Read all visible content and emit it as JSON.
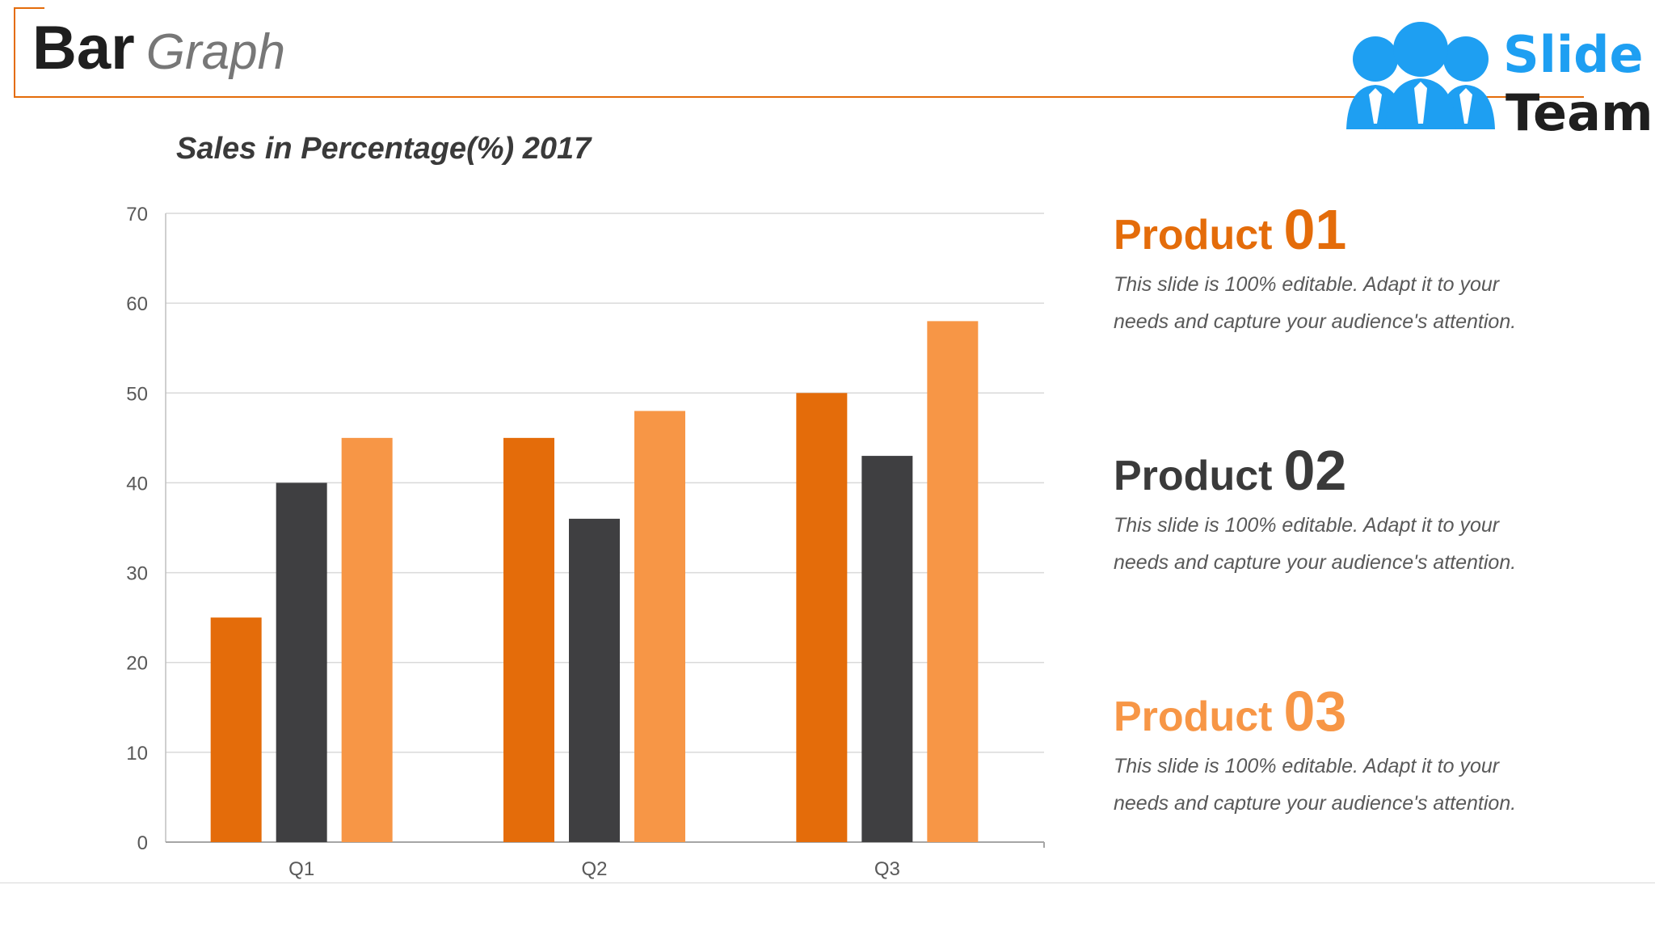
{
  "header": {
    "title_bold": "Bar",
    "title_italic": "Graph"
  },
  "logo": {
    "word1": "Slide",
    "word2": "Team",
    "blue": "#1e9ff2"
  },
  "colors": {
    "accent": "#e46c0a",
    "dark": "#3f3f41",
    "light_orange": "#f79646"
  },
  "chart_data": {
    "type": "bar",
    "title": "Sales in Percentage(%) 2017",
    "categories": [
      "Q1",
      "Q2",
      "Q3"
    ],
    "series": [
      {
        "color": "#e46c0a",
        "values": [
          25,
          45,
          50
        ]
      },
      {
        "color": "#3f3f41",
        "values": [
          40,
          36,
          43
        ]
      },
      {
        "color": "#f79646",
        "values": [
          45,
          48,
          58
        ]
      }
    ],
    "ylim": [
      0,
      70
    ],
    "yticks": [
      0,
      10,
      20,
      30,
      40,
      50,
      60,
      70
    ],
    "grid": true,
    "legend": "none"
  },
  "products": [
    {
      "label": "Product",
      "number": "01",
      "color": "#e46c0a",
      "desc_line1": "This slide is 100% editable. Adapt it to your",
      "desc_line2": "needs and capture your audience's attention."
    },
    {
      "label": "Product",
      "number": "02",
      "color": "#3a3a3a",
      "desc_line1": "This slide is 100% editable. Adapt it to your",
      "desc_line2": "needs and capture your audience's attention."
    },
    {
      "label": "Product",
      "number": "03",
      "color": "#f79646",
      "desc_line1": "This slide is 100% editable. Adapt it to your",
      "desc_line2": "needs and capture your audience's attention."
    }
  ]
}
